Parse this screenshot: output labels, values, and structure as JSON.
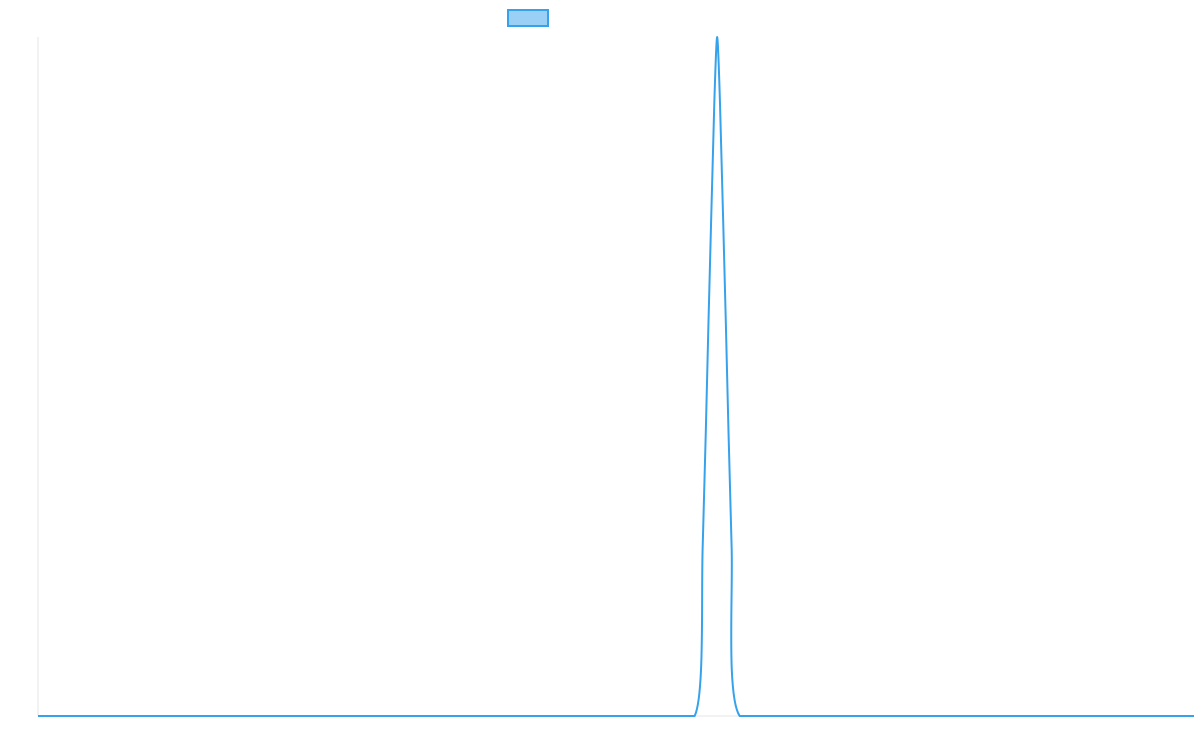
{
  "chart_data": {
    "type": "line",
    "title": "",
    "xlabel": "",
    "ylabel": "",
    "grid": false,
    "legend": {
      "placement": "top-center",
      "entries": [
        {
          "label": "",
          "color": "#36a2eb",
          "fill": "#9ad0f5"
        }
      ]
    },
    "xlim": [
      0,
      100
    ],
    "ylim": [
      0,
      1
    ],
    "series": [
      {
        "color": "#36a2eb",
        "points": [
          [
            0,
            0
          ],
          [
            10,
            0
          ],
          [
            20,
            0
          ],
          [
            30,
            0
          ],
          [
            40,
            0
          ],
          [
            50,
            0
          ],
          [
            56.8,
            0
          ],
          [
            57.5,
            0.25
          ],
          [
            58.0,
            0.58
          ],
          [
            58.5,
            0.9
          ],
          [
            58.75,
            1.0
          ],
          [
            59.0,
            0.9
          ],
          [
            59.5,
            0.58
          ],
          [
            60.0,
            0.25
          ],
          [
            60.7,
            0
          ],
          [
            70,
            0
          ],
          [
            80,
            0
          ],
          [
            90,
            0
          ],
          [
            100,
            0
          ]
        ]
      }
    ]
  }
}
